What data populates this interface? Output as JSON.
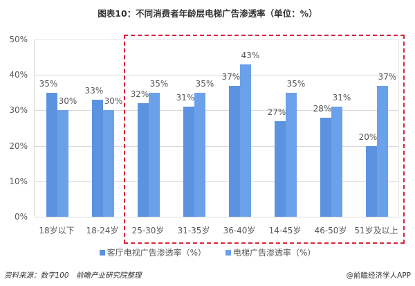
{
  "title": "图表10：不同消费者年龄层电梯广告渗透率（单位：%）",
  "chart_data": {
    "type": "bar",
    "title": "图表10：不同消费者年龄层电梯广告渗透率（单位：%）",
    "xlabel": "",
    "ylabel": "",
    "ylim": [
      0,
      50
    ],
    "yticks": [
      "0%",
      "10%",
      "20%",
      "30%",
      "40%",
      "50%"
    ],
    "grid": true,
    "legend_position": "bottom",
    "categories": [
      "18岁以下",
      "18-24岁",
      "25-30岁",
      "31-35岁",
      "36-40岁",
      "14-45岁",
      "46-50岁",
      "51岁及以上"
    ],
    "series": [
      {
        "name": "客厅电视广告渗透率（%）",
        "values": [
          35,
          33,
          32,
          31,
          37,
          27,
          28,
          20
        ],
        "labels": [
          "35%",
          "33%",
          "32%",
          "31%",
          "37%",
          "27%",
          "28%",
          "20%"
        ],
        "color": "#5b93e0"
      },
      {
        "name": "电梯广告渗透率（%）",
        "values": [
          30,
          30,
          35,
          35,
          43,
          35,
          31,
          37
        ],
        "labels": [
          "30%",
          "30%",
          "35%",
          "35%",
          "43%",
          "35%",
          "31%",
          "37%"
        ],
        "color": "#6aa1ea"
      }
    ],
    "annotations": [
      {
        "type": "dashed-rectangle",
        "color": "#d9223a",
        "covers_categories": [
          "25-30岁",
          "31-35岁",
          "36-40岁",
          "14-45岁",
          "46-50岁",
          "51岁及以上"
        ]
      }
    ]
  },
  "footer": {
    "source": "资料来源：数字100　前瞻产业研究院整理",
    "credit": "@前瞻经济学人APP"
  }
}
